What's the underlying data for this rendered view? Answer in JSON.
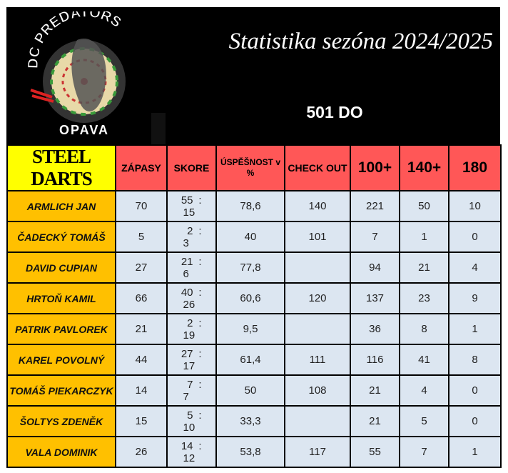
{
  "header": {
    "title": "Statistika sezóna 2024/2025",
    "subtitle": "501 DO",
    "logo_text_top": "DC PREDATORS",
    "logo_text_bottom": "OPAVA"
  },
  "columns": {
    "brand": "STEEL DARTS",
    "matches": "ZÁPASY",
    "score": "SKORE",
    "success": "ÚSPĚŠNOST v %",
    "checkout": "CHECK OUT",
    "c100": "100+",
    "c140": "140+",
    "c180": "180"
  },
  "colors": {
    "banner": "#000000",
    "brand": "#ffff00",
    "header": "#ff5757",
    "name": "#ffc000",
    "cell": "#dce6f1"
  },
  "rows": [
    {
      "name": "ARMLICH JAN",
      "matches": "70",
      "won": "55",
      "lost": "15",
      "success": "78,6",
      "checkout": "140",
      "c100": "221",
      "c140": "50",
      "c180": "10"
    },
    {
      "name": "ČADECKÝ TOMÁŠ",
      "matches": "5",
      "won": "2",
      "lost": "3",
      "success": "40",
      "checkout": "101",
      "c100": "7",
      "c140": "1",
      "c180": "0"
    },
    {
      "name": "DAVID CUPIAN",
      "matches": "27",
      "won": "21",
      "lost": "6",
      "success": "77,8",
      "checkout": "",
      "c100": "94",
      "c140": "21",
      "c180": "4"
    },
    {
      "name": "HRTOŇ KAMIL",
      "matches": "66",
      "won": "40",
      "lost": "26",
      "success": "60,6",
      "checkout": "120",
      "c100": "137",
      "c140": "23",
      "c180": "9"
    },
    {
      "name": "PATRIK PAVLOREK",
      "matches": "21",
      "won": "2",
      "lost": "19",
      "success": "9,5",
      "checkout": "",
      "c100": "36",
      "c140": "8",
      "c180": "1"
    },
    {
      "name": "KAREL POVOLNÝ",
      "matches": "44",
      "won": "27",
      "lost": "17",
      "success": "61,4",
      "checkout": "111",
      "c100": "116",
      "c140": "41",
      "c180": "8"
    },
    {
      "name": "TOMÁŠ PIEKARCZYK",
      "matches": "14",
      "won": "7",
      "lost": "7",
      "success": "50",
      "checkout": "108",
      "c100": "21",
      "c140": "4",
      "c180": "0"
    },
    {
      "name": "ŠOLTYS ZDENĚK",
      "matches": "15",
      "won": "5",
      "lost": "10",
      "success": "33,3",
      "checkout": "",
      "c100": "21",
      "c140": "5",
      "c180": "0"
    },
    {
      "name": "VALA DOMINIK",
      "matches": "26",
      "won": "14",
      "lost": "12",
      "success": "53,8",
      "checkout": "117",
      "c100": "55",
      "c140": "7",
      "c180": "1"
    }
  ]
}
